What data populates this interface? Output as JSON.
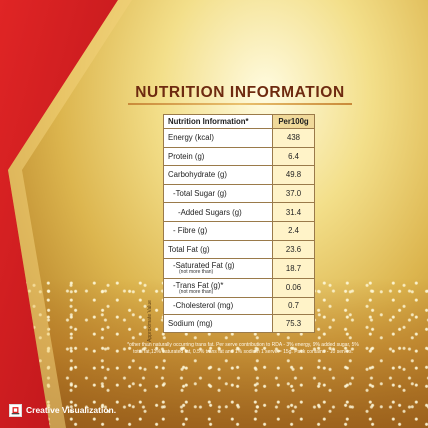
{
  "title": "NUTRITION INFORMATION",
  "header": {
    "label": "Nutrition Information*",
    "value": "Per100g"
  },
  "rows": [
    {
      "label": "Energy (kcal)",
      "sub": "",
      "value": "438",
      "indent": 0
    },
    {
      "label": "Protein (g)",
      "sub": "",
      "value": "6.4",
      "indent": 0
    },
    {
      "label": "Carbohydrate (g)",
      "sub": "",
      "value": "49.8",
      "indent": 0
    },
    {
      "label": "-Total Sugar (g)",
      "sub": "",
      "value": "37.0",
      "indent": 1
    },
    {
      "label": "-Added Sugars (g)",
      "sub": "",
      "value": "31.4",
      "indent": 2
    },
    {
      "label": "- Fibre (g)",
      "sub": "",
      "value": "2.4",
      "indent": 1
    },
    {
      "label": "Total Fat (g)",
      "sub": "",
      "value": "23.6",
      "indent": 0
    },
    {
      "label": "-Saturated Fat (g)",
      "sub": "(not more than)",
      "value": "18.7",
      "indent": 1
    },
    {
      "label": "-Trans Fat (g)*",
      "sub": "(not more than)",
      "value": "0.06",
      "indent": 1
    },
    {
      "label": "-Cholesterol (mg)",
      "sub": "",
      "value": "0.7",
      "indent": 1
    },
    {
      "label": "Sodium (mg)",
      "sub": "",
      "value": "75.3",
      "indent": 0
    }
  ],
  "side_note": "* Approximate Value",
  "footnote": "*other than naturally occurring trans fat. Per serve contribution to RDA - 3% energy, 9% added sugar, 5% total fat,13% saturated fat, 0.5% trans fat and 1% sodium 1 serve = 15g. Pack contains - 10 serves.",
  "badge_text": "Creative Visualization.",
  "colors": {
    "title": "#6e2a10",
    "red": "#d81e1e",
    "gold": "#e3c068"
  }
}
